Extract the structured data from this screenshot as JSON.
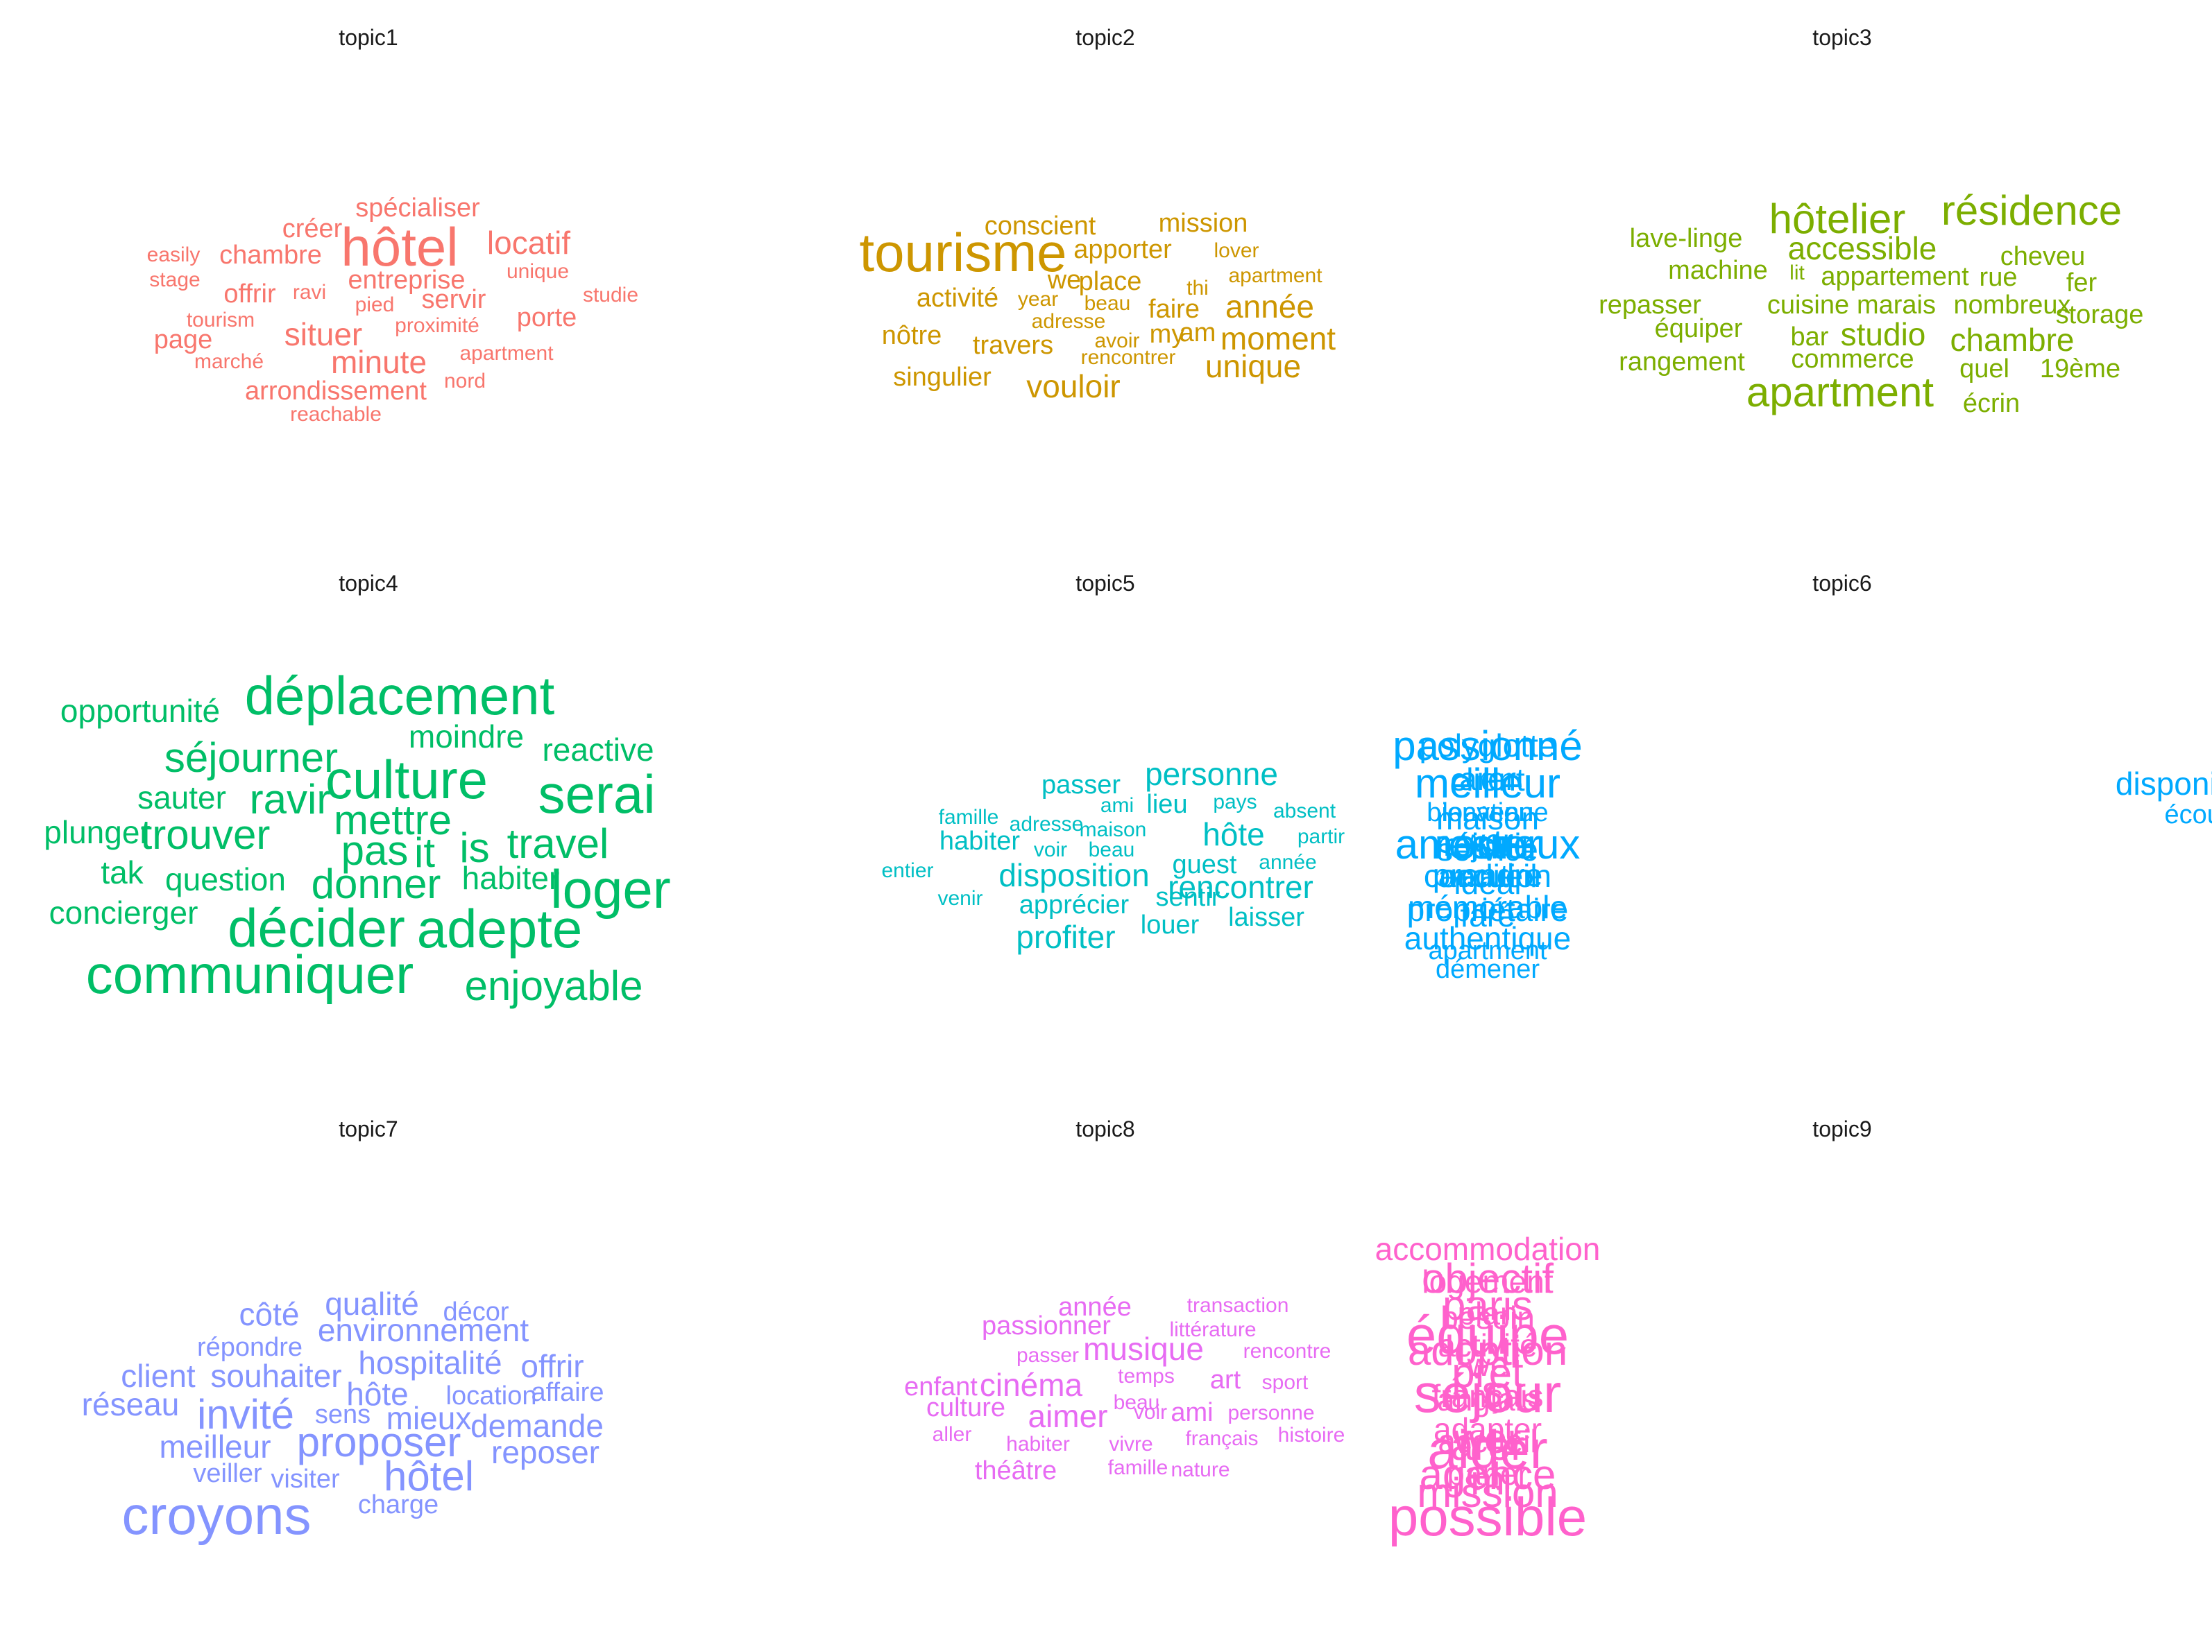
{
  "topics": [
    {
      "title": "topic1",
      "color": "#F8766D",
      "words": [
        {
          "text": "spécialiser",
          "size": 2
        },
        {
          "text": "créer",
          "size": 2
        },
        {
          "text": "hôtel",
          "size": 5
        },
        {
          "text": "locatif",
          "size": 3
        },
        {
          "text": "easily",
          "size": 1
        },
        {
          "text": "chambre",
          "size": 2
        },
        {
          "text": "unique",
          "size": 1
        },
        {
          "text": "stage",
          "size": 1
        },
        {
          "text": "offrir",
          "size": 2
        },
        {
          "text": "ravi",
          "size": 1
        },
        {
          "text": "entreprise",
          "size": 2
        },
        {
          "text": "studie",
          "size": 1
        },
        {
          "text": "pied",
          "size": 1
        },
        {
          "text": "servir",
          "size": 2
        },
        {
          "text": "tourism",
          "size": 1
        },
        {
          "text": "proximité",
          "size": 1
        },
        {
          "text": "porte",
          "size": 2
        },
        {
          "text": "page",
          "size": 2
        },
        {
          "text": "situer",
          "size": 3
        },
        {
          "text": "apartment",
          "size": 1
        },
        {
          "text": "marché",
          "size": 1
        },
        {
          "text": "minute",
          "size": 3
        },
        {
          "text": "nord",
          "size": 1
        },
        {
          "text": "arrondissement",
          "size": 2
        },
        {
          "text": "reachable",
          "size": 1
        }
      ]
    },
    {
      "title": "topic2",
      "color": "#CD9600",
      "words": [
        {
          "text": "conscient",
          "size": 2
        },
        {
          "text": "mission",
          "size": 2
        },
        {
          "text": "tourisme",
          "size": 5
        },
        {
          "text": "apporter",
          "size": 2
        },
        {
          "text": "lover",
          "size": 1
        },
        {
          "text": "we",
          "size": 2
        },
        {
          "text": "place",
          "size": 2
        },
        {
          "text": "thi",
          "size": 1
        },
        {
          "text": "apartment",
          "size": 1
        },
        {
          "text": "activité",
          "size": 2
        },
        {
          "text": "year",
          "size": 1
        },
        {
          "text": "beau",
          "size": 1
        },
        {
          "text": "faire",
          "size": 2
        },
        {
          "text": "année",
          "size": 3
        },
        {
          "text": "adresse",
          "size": 1
        },
        {
          "text": "nôtre",
          "size": 2
        },
        {
          "text": "travers",
          "size": 2
        },
        {
          "text": "avoir",
          "size": 1
        },
        {
          "text": "my",
          "size": 2
        },
        {
          "text": "am",
          "size": 2
        },
        {
          "text": "moment",
          "size": 3
        },
        {
          "text": "rencontrer",
          "size": 1
        },
        {
          "text": "unique",
          "size": 3
        },
        {
          "text": "singulier",
          "size": 2
        },
        {
          "text": "vouloir",
          "size": 3
        }
      ]
    },
    {
      "title": "topic3",
      "color": "#7CAE00",
      "words": [
        {
          "text": "hôtelier",
          "size": 4
        },
        {
          "text": "résidence",
          "size": 4
        },
        {
          "text": "lave-linge",
          "size": 2
        },
        {
          "text": "accessible",
          "size": 3
        },
        {
          "text": "cheveu",
          "size": 2
        },
        {
          "text": "machine",
          "size": 2
        },
        {
          "text": "lit",
          "size": 1
        },
        {
          "text": "appartement",
          "size": 2
        },
        {
          "text": "rue",
          "size": 2
        },
        {
          "text": "fer",
          "size": 2
        },
        {
          "text": "repasser",
          "size": 2
        },
        {
          "text": "cuisine",
          "size": 2
        },
        {
          "text": "marais",
          "size": 2
        },
        {
          "text": "nombreux",
          "size": 2
        },
        {
          "text": "storage",
          "size": 2
        },
        {
          "text": "équiper",
          "size": 2
        },
        {
          "text": "bar",
          "size": 2
        },
        {
          "text": "studio",
          "size": 3
        },
        {
          "text": "chambre",
          "size": 3
        },
        {
          "text": "rangement",
          "size": 2
        },
        {
          "text": "commerce",
          "size": 2
        },
        {
          "text": "quel",
          "size": 2
        },
        {
          "text": "19ème",
          "size": 2
        },
        {
          "text": "apartment",
          "size": 4
        },
        {
          "text": "écrin",
          "size": 2
        }
      ]
    },
    {
      "title": "topic4",
      "color": "#00BE67",
      "words": [
        {
          "text": "déplacement",
          "size": 5
        },
        {
          "text": "opportunité",
          "size": 3
        },
        {
          "text": "moindre",
          "size": 3
        },
        {
          "text": "séjourner",
          "size": 4
        },
        {
          "text": "reactive",
          "size": 3
        },
        {
          "text": "culture",
          "size": 5
        },
        {
          "text": "serai",
          "size": 5
        },
        {
          "text": "sauter",
          "size": 3
        },
        {
          "text": "ravir",
          "size": 4
        },
        {
          "text": "mettre",
          "size": 4
        },
        {
          "text": "plunger",
          "size": 3
        },
        {
          "text": "trouver",
          "size": 4
        },
        {
          "text": "travel",
          "size": 4
        },
        {
          "text": "pas",
          "size": 4
        },
        {
          "text": "it",
          "size": 4
        },
        {
          "text": "is",
          "size": 4
        },
        {
          "text": "tak",
          "size": 3
        },
        {
          "text": "question",
          "size": 3
        },
        {
          "text": "donner",
          "size": 4
        },
        {
          "text": "habiter",
          "size": 3
        },
        {
          "text": "loger",
          "size": 5
        },
        {
          "text": "concierger",
          "size": 3
        },
        {
          "text": "décider",
          "size": 5
        },
        {
          "text": "adepte",
          "size": 5
        },
        {
          "text": "communiquer",
          "size": 5
        },
        {
          "text": "enjoyable",
          "size": 4
        }
      ]
    },
    {
      "title": "topic5",
      "color": "#00BFC4",
      "words": [
        {
          "text": "passer",
          "size": 2
        },
        {
          "text": "personne",
          "size": 3
        },
        {
          "text": "ami",
          "size": 1
        },
        {
          "text": "lieu",
          "size": 2
        },
        {
          "text": "pays",
          "size": 1
        },
        {
          "text": "absent",
          "size": 1
        },
        {
          "text": "famille",
          "size": 1
        },
        {
          "text": "adresse",
          "size": 1
        },
        {
          "text": "maison",
          "size": 1
        },
        {
          "text": "hôte",
          "size": 3
        },
        {
          "text": "partir",
          "size": 1
        },
        {
          "text": "habiter",
          "size": 2
        },
        {
          "text": "voir",
          "size": 1
        },
        {
          "text": "beau",
          "size": 1
        },
        {
          "text": "guest",
          "size": 2
        },
        {
          "text": "année",
          "size": 1
        },
        {
          "text": "entier",
          "size": 1
        },
        {
          "text": "disposition",
          "size": 3
        },
        {
          "text": "rencontrer",
          "size": 3
        },
        {
          "text": "venir",
          "size": 1
        },
        {
          "text": "apprécier",
          "size": 2
        },
        {
          "text": "sentir",
          "size": 2
        },
        {
          "text": "profiter",
          "size": 3
        },
        {
          "text": "louer",
          "size": 2
        },
        {
          "text": "laisser",
          "size": 2
        }
      ]
    },
    {
      "title": "topic6",
      "color": "#00A9FF",
      "words": [
        {
          "text": "polyglotte",
          "size": 3
        },
        {
          "text": "passionné",
          "size": 4
        },
        {
          "text": "disponibles",
          "size": 3
        },
        {
          "text": "arer",
          "size": 3
        },
        {
          "text": "meilleur",
          "size": 4
        },
        {
          "text": "client",
          "size": 3
        },
        {
          "text": "écout",
          "size": 2
        },
        {
          "text": "location",
          "size": 2
        },
        {
          "text": "maison",
          "size": 3
        },
        {
          "text": "bienvenue",
          "size": 2
        },
        {
          "text": "amoureux",
          "size": 4
        },
        {
          "text": "wer",
          "size": 3
        },
        {
          "text": "service",
          "size": 3
        },
        {
          "text": "rester",
          "size": 4
        },
        {
          "text": "réjouir",
          "size": 3
        },
        {
          "text": "idéal",
          "size": 3
        },
        {
          "text": "prendre",
          "size": 3
        },
        {
          "text": "accueil",
          "size": 3
        },
        {
          "text": "condition",
          "size": 3
        },
        {
          "text": "faré",
          "size": 3
        },
        {
          "text": "mémorable",
          "size": 3
        },
        {
          "text": "propriétaire",
          "size": 3
        },
        {
          "text": "authentique",
          "size": 3
        },
        {
          "text": "apartment",
          "size": 2
        },
        {
          "text": "démener",
          "size": 2
        }
      ]
    },
    {
      "title": "topic7",
      "color": "#8494FF",
      "words": [
        {
          "text": "qualité",
          "size": 3
        },
        {
          "text": "côté",
          "size": 3
        },
        {
          "text": "décor",
          "size": 2
        },
        {
          "text": "environnement",
          "size": 3
        },
        {
          "text": "répondre",
          "size": 2
        },
        {
          "text": "hospitalité",
          "size": 3
        },
        {
          "text": "offrir",
          "size": 3
        },
        {
          "text": "client",
          "size": 3
        },
        {
          "text": "souhaiter",
          "size": 3
        },
        {
          "text": "hôte",
          "size": 3
        },
        {
          "text": "location",
          "size": 2
        },
        {
          "text": "affaire",
          "size": 2
        },
        {
          "text": "réseau",
          "size": 3
        },
        {
          "text": "invité",
          "size": 4
        },
        {
          "text": "sens",
          "size": 2
        },
        {
          "text": "mieux",
          "size": 3
        },
        {
          "text": "demande",
          "size": 3
        },
        {
          "text": "meilleur",
          "size": 3
        },
        {
          "text": "proposer",
          "size": 4
        },
        {
          "text": "reposer",
          "size": 3
        },
        {
          "text": "veiller",
          "size": 2
        },
        {
          "text": "visiter",
          "size": 2
        },
        {
          "text": "hôtel",
          "size": 4
        },
        {
          "text": "croyons",
          "size": 5
        },
        {
          "text": "charge",
          "size": 2
        }
      ]
    },
    {
      "title": "topic8",
      "color": "#E76BF3",
      "words": [
        {
          "text": "année",
          "size": 2
        },
        {
          "text": "transaction",
          "size": 1
        },
        {
          "text": "passionner",
          "size": 2
        },
        {
          "text": "littérature",
          "size": 1
        },
        {
          "text": "musique",
          "size": 3
        },
        {
          "text": "passer",
          "size": 1
        },
        {
          "text": "rencontre",
          "size": 1
        },
        {
          "text": "enfant",
          "size": 2
        },
        {
          "text": "cinéma",
          "size": 3
        },
        {
          "text": "temps",
          "size": 1
        },
        {
          "text": "art",
          "size": 2
        },
        {
          "text": "sport",
          "size": 1
        },
        {
          "text": "beau",
          "size": 1
        },
        {
          "text": "culture",
          "size": 2
        },
        {
          "text": "aimer",
          "size": 3
        },
        {
          "text": "voir",
          "size": 1
        },
        {
          "text": "ami",
          "size": 2
        },
        {
          "text": "personne",
          "size": 1
        },
        {
          "text": "aller",
          "size": 1
        },
        {
          "text": "habiter",
          "size": 1
        },
        {
          "text": "vivre",
          "size": 1
        },
        {
          "text": "français",
          "size": 1
        },
        {
          "text": "histoire",
          "size": 1
        },
        {
          "text": "théâtre",
          "size": 2
        },
        {
          "text": "famille",
          "size": 1
        },
        {
          "text": "nature",
          "size": 1
        }
      ]
    },
    {
      "title": "topic9",
      "color": "#FF61CC",
      "words": [
        {
          "text": "accommodation",
          "size": 3
        },
        {
          "text": "objectif",
          "size": 4
        },
        {
          "text": "logement",
          "size": 3
        },
        {
          "text": "paris",
          "size": 4
        },
        {
          "text": "besoin",
          "size": 3
        },
        {
          "text": "plan",
          "size": 3
        },
        {
          "text": "équipe",
          "size": 5
        },
        {
          "text": "activité",
          "size": 3
        },
        {
          "text": "adoption",
          "size": 4
        },
        {
          "text": "prêt",
          "size": 4
        },
        {
          "text": "we",
          "size": 3
        },
        {
          "text": "séjour",
          "size": 5
        },
        {
          "text": "is",
          "size": 4
        },
        {
          "text": "français",
          "size": 3
        },
        {
          "text": "anglais",
          "size": 3
        },
        {
          "text": "adapter",
          "size": 3
        },
        {
          "text": "wer",
          "size": 4
        },
        {
          "text": "accueil",
          "size": 3
        },
        {
          "text": "aider",
          "size": 5
        },
        {
          "text": "arer",
          "size": 4
        },
        {
          "text": "agence",
          "size": 4
        },
        {
          "text": "parler",
          "size": 3
        },
        {
          "text": "m",
          "size": 4
        },
        {
          "text": "mission",
          "size": 4
        },
        {
          "text": "possible",
          "size": 5
        }
      ]
    }
  ]
}
